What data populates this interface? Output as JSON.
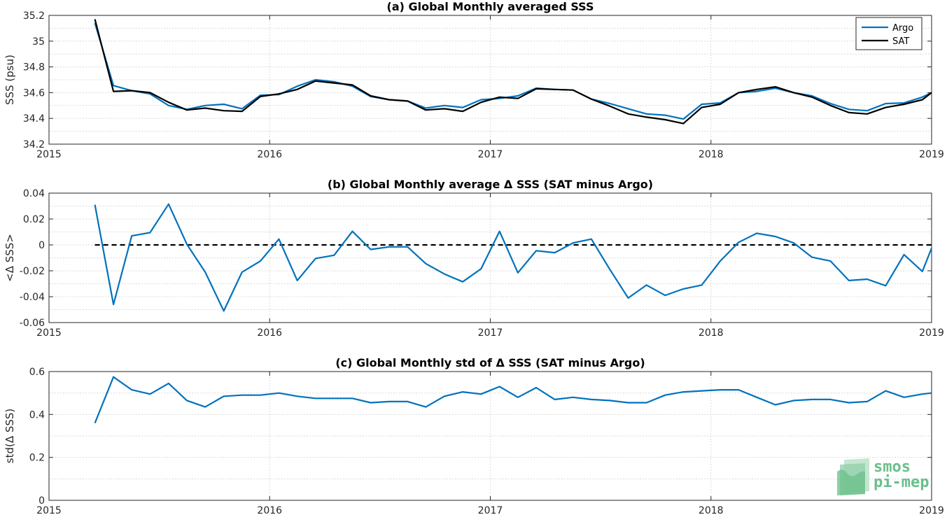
{
  "chart_data": [
    {
      "type": "line",
      "title": "(a) Global Monthly averaged SSS",
      "ylabel": "SSS (psu)",
      "xlim": [
        2015,
        2019
      ],
      "ylim": [
        34.2,
        35.2
      ],
      "xticks": [
        2015,
        2016,
        2017,
        2018,
        2019
      ],
      "xtick_labels": [
        "2015",
        "2016",
        "2017",
        "2018",
        "2019"
      ],
      "yticks": [
        34.2,
        34.4,
        34.6,
        34.8,
        35,
        35.2
      ],
      "ytick_labels": [
        "34.2",
        "34.4",
        "34.6",
        "34.8",
        "35",
        "35.2"
      ],
      "grid": true,
      "legend": "top-right",
      "x": [
        2015.208,
        2015.292,
        2015.375,
        2015.458,
        2015.542,
        2015.625,
        2015.708,
        2015.792,
        2015.875,
        2015.958,
        2016.042,
        2016.125,
        2016.208,
        2016.292,
        2016.375,
        2016.458,
        2016.542,
        2016.625,
        2016.708,
        2016.792,
        2016.875,
        2016.958,
        2017.042,
        2017.125,
        2017.208,
        2017.292,
        2017.375,
        2017.458,
        2017.542,
        2017.625,
        2017.708,
        2017.792,
        2017.875,
        2017.958,
        2018.042,
        2018.125,
        2018.208,
        2018.292,
        2018.375,
        2018.458,
        2018.542,
        2018.625,
        2018.708,
        2018.792,
        2018.875,
        2018.958,
        2019.0
      ],
      "series": [
        {
          "name": "Argo",
          "color": "#0072BD",
          "width": 2.2,
          "values": [
            35.14,
            34.655,
            34.615,
            34.59,
            34.5,
            34.47,
            34.5,
            34.51,
            34.475,
            34.58,
            34.585,
            34.65,
            34.7,
            34.685,
            34.65,
            34.57,
            34.545,
            34.535,
            34.48,
            34.5,
            34.485,
            34.545,
            34.555,
            34.575,
            34.635,
            34.625,
            34.62,
            34.55,
            34.515,
            34.475,
            34.435,
            34.425,
            34.395,
            34.51,
            34.52,
            34.6,
            34.61,
            34.635,
            34.6,
            34.575,
            34.515,
            34.47,
            34.46,
            34.515,
            34.52,
            34.565,
            34.6
          ]
        },
        {
          "name": "SAT",
          "color": "#000000",
          "width": 2.2,
          "values": [
            35.17,
            34.61,
            34.615,
            34.6,
            34.525,
            34.465,
            34.48,
            34.46,
            34.455,
            34.57,
            34.59,
            34.625,
            34.69,
            34.675,
            34.66,
            34.575,
            34.545,
            34.535,
            34.465,
            34.475,
            34.455,
            34.525,
            34.565,
            34.555,
            34.63,
            34.625,
            34.62,
            34.55,
            34.495,
            34.435,
            34.41,
            34.39,
            34.36,
            34.485,
            34.51,
            34.6,
            34.625,
            34.645,
            34.6,
            34.565,
            34.5,
            34.445,
            34.435,
            34.485,
            34.51,
            34.545,
            34.6
          ]
        }
      ]
    },
    {
      "type": "line",
      "title": "(b) Global Monthly average Δ SSS (SAT minus Argo)",
      "ylabel": "<Δ SSS>",
      "xlim": [
        2015,
        2019
      ],
      "ylim": [
        -0.06,
        0.04
      ],
      "xticks": [
        2015,
        2016,
        2017,
        2018,
        2019
      ],
      "xtick_labels": [
        "2015",
        "2016",
        "2017",
        "2018",
        "2019"
      ],
      "yticks": [
        -0.06,
        -0.04,
        -0.02,
        0,
        0.02,
        0.04
      ],
      "ytick_labels": [
        "-0.06",
        "-0.04",
        "-0.02",
        "0",
        "0.02",
        "0.04"
      ],
      "grid": true,
      "reference_line": {
        "y": 0,
        "color": "#000000",
        "style": "dashed"
      },
      "x": [
        2015.208,
        2015.292,
        2015.375,
        2015.458,
        2015.542,
        2015.625,
        2015.708,
        2015.792,
        2015.875,
        2015.958,
        2016.042,
        2016.125,
        2016.208,
        2016.292,
        2016.375,
        2016.458,
        2016.542,
        2016.625,
        2016.708,
        2016.792,
        2016.875,
        2016.958,
        2017.042,
        2017.125,
        2017.208,
        2017.292,
        2017.375,
        2017.458,
        2017.542,
        2017.625,
        2017.708,
        2017.792,
        2017.875,
        2017.958,
        2018.042,
        2018.125,
        2018.208,
        2018.292,
        2018.375,
        2018.458,
        2018.542,
        2018.625,
        2018.708,
        2018.792,
        2018.875,
        2018.958,
        2019.0
      ],
      "series": [
        {
          "color": "#0072BD",
          "width": 2.2,
          "values": [
            0.031,
            -0.046,
            0.007,
            0.0095,
            0.0315,
            0.0005,
            -0.021,
            -0.051,
            -0.021,
            -0.0125,
            0.0045,
            -0.0275,
            -0.0105,
            -0.008,
            0.0105,
            -0.0035,
            -0.0015,
            -0.0015,
            -0.0145,
            -0.0225,
            -0.0285,
            -0.0185,
            0.0105,
            -0.0215,
            -0.0045,
            -0.006,
            0.0015,
            0.0045,
            -0.019,
            -0.041,
            -0.031,
            -0.039,
            -0.034,
            -0.031,
            -0.0125,
            0.002,
            0.009,
            0.0065,
            0.0015,
            -0.0095,
            -0.0125,
            -0.0275,
            -0.0265,
            -0.0315,
            -0.0075,
            -0.0205,
            -0.0025
          ]
        }
      ]
    },
    {
      "type": "line",
      "title": "(c) Global Monthly std of Δ SSS (SAT minus Argo)",
      "ylabel": "std(Δ SSS)",
      "xlim": [
        2015,
        2019
      ],
      "ylim": [
        0,
        0.6
      ],
      "xticks": [
        2015,
        2016,
        2017,
        2018,
        2019
      ],
      "xtick_labels": [
        "2015",
        "2016",
        "2017",
        "2018",
        "2019"
      ],
      "yticks": [
        0,
        0.2,
        0.4,
        0.6
      ],
      "ytick_labels": [
        "0",
        "0.2",
        "0.4",
        "0.6"
      ],
      "grid": true,
      "x": [
        2015.208,
        2015.292,
        2015.375,
        2015.458,
        2015.542,
        2015.625,
        2015.708,
        2015.792,
        2015.875,
        2015.958,
        2016.042,
        2016.125,
        2016.208,
        2016.292,
        2016.375,
        2016.458,
        2016.542,
        2016.625,
        2016.708,
        2016.792,
        2016.875,
        2016.958,
        2017.042,
        2017.125,
        2017.208,
        2017.292,
        2017.375,
        2017.458,
        2017.542,
        2017.625,
        2017.708,
        2017.792,
        2017.875,
        2017.958,
        2018.042,
        2018.125,
        2018.208,
        2018.292,
        2018.375,
        2018.458,
        2018.542,
        2018.625,
        2018.708,
        2018.792,
        2018.875,
        2018.958,
        2019.0
      ],
      "series": [
        {
          "color": "#0072BD",
          "width": 2.2,
          "values": [
            0.36,
            0.575,
            0.515,
            0.495,
            0.545,
            0.465,
            0.435,
            0.485,
            0.49,
            0.49,
            0.5,
            0.485,
            0.475,
            0.475,
            0.475,
            0.455,
            0.46,
            0.46,
            0.435,
            0.485,
            0.505,
            0.495,
            0.53,
            0.48,
            0.525,
            0.47,
            0.48,
            0.47,
            0.465,
            0.455,
            0.455,
            0.49,
            0.505,
            0.51,
            0.515,
            0.515,
            0.48,
            0.445,
            0.465,
            0.47,
            0.47,
            0.455,
            0.46,
            0.51,
            0.48,
            0.495,
            0.5
          ]
        }
      ]
    }
  ],
  "logo": {
    "line1": "smos",
    "line2": "pi-mep",
    "color": "#6bbf8a"
  }
}
